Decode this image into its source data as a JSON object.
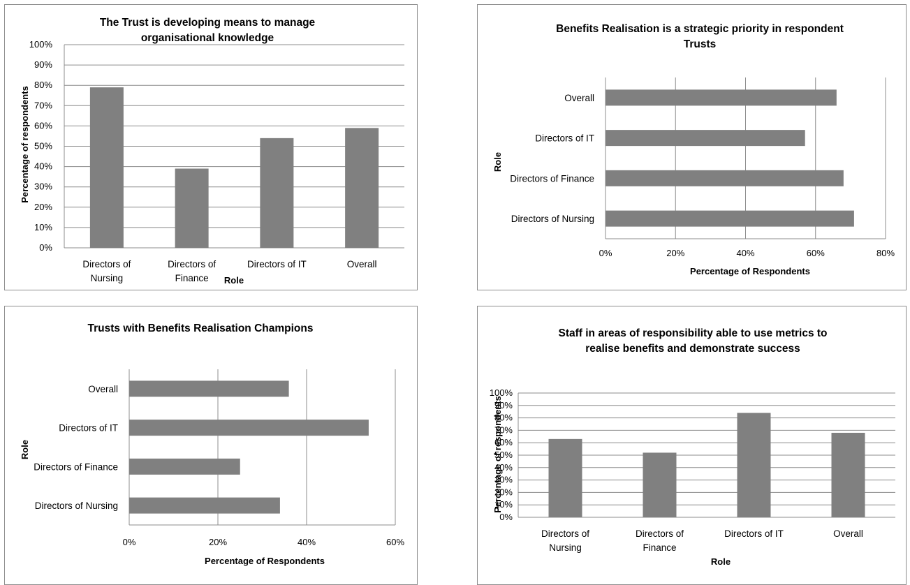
{
  "chart_data": [
    {
      "type": "bar",
      "orientation": "vertical",
      "title": "The Trust is developing means to manage organisational knowledge",
      "title_lines": [
        "The Trust is developing means to manage",
        "organisational knowledge"
      ],
      "xlabel": "Role",
      "ylabel": "Percentage of respondents",
      "categories": [
        [
          "Directors of",
          "Nursing"
        ],
        [
          "Directors of",
          "Finance"
        ],
        [
          "Directors of IT"
        ],
        [
          "Overall"
        ]
      ],
      "values": [
        0.79,
        0.39,
        0.54,
        0.59
      ],
      "ylim": [
        0,
        1
      ],
      "ticks": [
        "0%",
        "10%",
        "20%",
        "30%",
        "40%",
        "50%",
        "60%",
        "70%",
        "80%",
        "90%",
        "100%"
      ],
      "tick_values": [
        0,
        0.1,
        0.2,
        0.3,
        0.4,
        0.5,
        0.6,
        0.7,
        0.8,
        0.9,
        1.0
      ],
      "grid": true,
      "color": "#808080"
    },
    {
      "type": "bar",
      "orientation": "horizontal",
      "title": "Benefits Realisation is a strategic priority in respondent Trusts",
      "title_lines": [
        "Benefits Realisation is a strategic priority in respondent",
        "Trusts"
      ],
      "xlabel": "Percentage of Respondents",
      "ylabel": "Role",
      "categories": [
        "Overall",
        "Directors of IT",
        "Directors of Finance",
        "Directors of Nursing"
      ],
      "values": [
        0.66,
        0.57,
        0.68,
        0.71
      ],
      "xlim": [
        0,
        0.8
      ],
      "ticks": [
        "0%",
        "20%",
        "40%",
        "60%",
        "80%"
      ],
      "tick_values": [
        0,
        0.2,
        0.4,
        0.6,
        0.8
      ],
      "grid": true,
      "color": "#808080"
    },
    {
      "type": "bar",
      "orientation": "horizontal",
      "title": "Trusts with Benefits Realisation Champions",
      "title_lines": [
        "Trusts with Benefits Realisation Champions"
      ],
      "xlabel": "Percentage of Respondents",
      "ylabel": "Role",
      "categories": [
        "Overall",
        "Directors of IT",
        "Directors of Finance",
        "Directors of Nursing"
      ],
      "values": [
        0.36,
        0.54,
        0.25,
        0.34
      ],
      "xlim": [
        0,
        0.6
      ],
      "ticks": [
        "0%",
        "20%",
        "40%",
        "60%"
      ],
      "tick_values": [
        0,
        0.2,
        0.4,
        0.6
      ],
      "grid": true,
      "color": "#808080"
    },
    {
      "type": "bar",
      "orientation": "vertical",
      "title": "Staff in areas of responsibility able to use metrics to realise benefits and demonstrate success",
      "title_lines": [
        "Staff in areas of responsibility able to use metrics to",
        "realise benefits and demonstrate success"
      ],
      "xlabel": "Role",
      "ylabel": "Percentage of respondents",
      "categories": [
        [
          "Directors of",
          "Nursing"
        ],
        [
          "Directors of",
          "Finance"
        ],
        [
          "Directors of IT"
        ],
        [
          "Overall"
        ]
      ],
      "values": [
        0.63,
        0.52,
        0.84,
        0.68
      ],
      "ylim": [
        0,
        1
      ],
      "ticks": [
        "0%",
        "10%",
        "20%",
        "30%",
        "40%",
        "50%",
        "60%",
        "70%",
        "80%",
        "90%",
        "100%"
      ],
      "tick_values": [
        0,
        0.1,
        0.2,
        0.3,
        0.4,
        0.5,
        0.6,
        0.7,
        0.8,
        0.9,
        1.0
      ],
      "grid": true,
      "color": "#808080"
    }
  ]
}
